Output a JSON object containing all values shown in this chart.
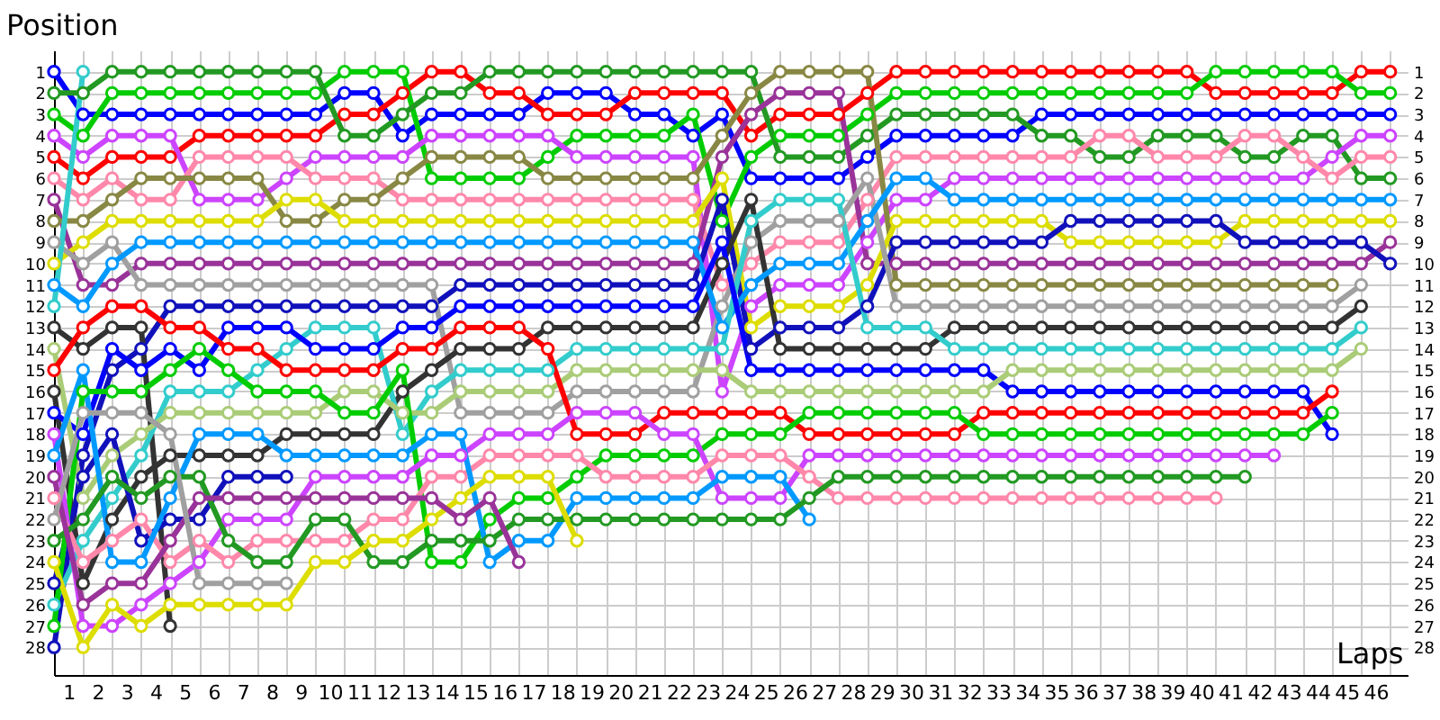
{
  "chart_data": {
    "type": "line",
    "xlabel": "Laps",
    "ylabel": "Position",
    "x": [
      0,
      1,
      2,
      3,
      4,
      5,
      6,
      7,
      8,
      9,
      10,
      11,
      12,
      13,
      14,
      15,
      16,
      17,
      18,
      19,
      20,
      21,
      22,
      23,
      24,
      25,
      26,
      27,
      28,
      29,
      30,
      31,
      32,
      33,
      34,
      35,
      36,
      37,
      38,
      39,
      40,
      41,
      42,
      43,
      44,
      45,
      46
    ],
    "xlim": [
      0,
      46.6
    ],
    "ylim": [
      29.3,
      0
    ],
    "y2lim": [
      29.3,
      0
    ],
    "xticks": [
      {
        "value": 0,
        "label": null
      },
      {
        "value": 0.5,
        "label": "1"
      },
      {
        "value": 1,
        "label": null
      },
      {
        "value": 1.5,
        "label": "2"
      },
      {
        "value": 2,
        "label": null
      },
      {
        "value": 2.5,
        "label": "3"
      },
      {
        "value": 3,
        "label": null
      },
      {
        "value": 3.5,
        "label": "4"
      },
      {
        "value": 4,
        "label": null
      },
      {
        "value": 4.5,
        "label": "5"
      },
      {
        "value": 5,
        "label": null
      },
      {
        "value": 5.5,
        "label": "6"
      },
      {
        "value": 6,
        "label": null
      },
      {
        "value": 6.5,
        "label": "7"
      },
      {
        "value": 7,
        "label": null
      },
      {
        "value": 7.5,
        "label": "8"
      },
      {
        "value": 8,
        "label": null
      },
      {
        "value": 8.5,
        "label": "9"
      },
      {
        "value": 9,
        "label": null
      },
      {
        "value": 9.5,
        "label": "10"
      },
      {
        "value": 10,
        "label": null
      },
      {
        "value": 10.5,
        "label": "11"
      },
      {
        "value": 11,
        "label": null
      },
      {
        "value": 11.5,
        "label": "12"
      },
      {
        "value": 12,
        "label": null
      },
      {
        "value": 12.5,
        "label": "13"
      },
      {
        "value": 13,
        "label": null
      },
      {
        "value": 13.5,
        "label": "14"
      },
      {
        "value": 14,
        "label": null
      },
      {
        "value": 14.5,
        "label": "15"
      },
      {
        "value": 15,
        "label": null
      },
      {
        "value": 15.5,
        "label": "16"
      },
      {
        "value": 16,
        "label": null
      },
      {
        "value": 16.5,
        "label": "17"
      },
      {
        "value": 17,
        "label": null
      },
      {
        "value": 17.5,
        "label": "18"
      },
      {
        "value": 18,
        "label": null
      },
      {
        "value": 18.5,
        "label": "19"
      },
      {
        "value": 19,
        "label": null
      },
      {
        "value": 19.5,
        "label": "20"
      },
      {
        "value": 20,
        "label": null
      },
      {
        "value": 20.5,
        "label": "21"
      },
      {
        "value": 21,
        "label": null
      },
      {
        "value": 21.5,
        "label": "22"
      },
      {
        "value": 22,
        "label": null
      },
      {
        "value": 22.5,
        "label": "23"
      },
      {
        "value": 23,
        "label": null
      },
      {
        "value": 23.5,
        "label": "24"
      },
      {
        "value": 24,
        "label": null
      },
      {
        "value": 24.5,
        "label": "25"
      },
      {
        "value": 25,
        "label": null
      },
      {
        "value": 25.5,
        "label": "26"
      },
      {
        "value": 26,
        "label": null
      },
      {
        "value": 26.5,
        "label": "27"
      },
      {
        "value": 27,
        "label": null
      },
      {
        "value": 27.5,
        "label": "28"
      },
      {
        "value": 28,
        "label": null
      },
      {
        "value": 28.5,
        "label": "29"
      },
      {
        "value": 29,
        "label": null
      },
      {
        "value": 29.5,
        "label": "30"
      },
      {
        "value": 30,
        "label": null
      },
      {
        "value": 30.5,
        "label": "31"
      },
      {
        "value": 31,
        "label": null
      },
      {
        "value": 31.5,
        "label": "32"
      },
      {
        "value": 32,
        "label": null
      },
      {
        "value": 32.5,
        "label": "33"
      },
      {
        "value": 33,
        "label": null
      },
      {
        "value": 33.5,
        "label": "34"
      },
      {
        "value": 34,
        "label": null
      },
      {
        "value": 34.5,
        "label": "35"
      },
      {
        "value": 35,
        "label": null
      },
      {
        "value": 35.5,
        "label": "36"
      },
      {
        "value": 36,
        "label": null
      },
      {
        "value": 36.5,
        "label": "37"
      },
      {
        "value": 37,
        "label": null
      },
      {
        "value": 37.5,
        "label": "38"
      },
      {
        "value": 38,
        "label": null
      },
      {
        "value": 38.5,
        "label": "39"
      },
      {
        "value": 39,
        "label": null
      },
      {
        "value": 39.5,
        "label": "40"
      },
      {
        "value": 40,
        "label": null
      },
      {
        "value": 40.5,
        "label": "41"
      },
      {
        "value": 41,
        "label": null
      },
      {
        "value": 41.5,
        "label": "42"
      },
      {
        "value": 42,
        "label": null
      },
      {
        "value": 42.5,
        "label": "43"
      },
      {
        "value": 43,
        "label": null
      },
      {
        "value": 43.5,
        "label": "44"
      },
      {
        "value": 44,
        "label": null
      },
      {
        "value": 44.5,
        "label": "45"
      },
      {
        "value": 45,
        "label": null
      },
      {
        "value": 45.5,
        "label": "46"
      },
      {
        "value": 46,
        "label": null
      }
    ],
    "yticks": [
      1,
      2,
      3,
      4,
      5,
      6,
      7,
      8,
      9,
      10,
      11,
      12,
      13,
      14,
      15,
      16,
      17,
      18,
      19,
      20,
      21,
      22,
      23,
      24,
      25,
      26,
      27,
      28
    ],
    "y2ticks": [
      1,
      2,
      3,
      4,
      5,
      6,
      7,
      8,
      9,
      10,
      11,
      12,
      13,
      14,
      15,
      16,
      17,
      18,
      19,
      20,
      21,
      22,
      23,
      24,
      25,
      26,
      27,
      28
    ],
    "grid": true,
    "marker": "circle",
    "line_style": "solid",
    "series": [
      {
        "color": "#0000ff",
        "values": [
          1,
          3,
          3,
          3,
          3,
          3,
          3,
          3,
          3,
          3,
          2,
          2,
          4,
          3,
          3,
          3,
          3,
          2,
          2,
          2,
          3,
          3,
          4,
          3,
          6,
          6,
          6,
          6,
          5,
          4,
          4,
          4,
          4,
          4,
          3,
          3,
          3,
          3,
          3,
          3,
          3,
          3,
          3,
          3,
          3,
          3,
          3
        ]
      },
      {
        "color": "#ff0000",
        "values": [
          5,
          6,
          5,
          5,
          5,
          4,
          4,
          4,
          4,
          4,
          3,
          3,
          2,
          1,
          1,
          2,
          2,
          3,
          3,
          3,
          2,
          2,
          2,
          2,
          4,
          3,
          3,
          3,
          2,
          1,
          1,
          1,
          1,
          1,
          1,
          1,
          1,
          1,
          1,
          1,
          2,
          2,
          2,
          2,
          2,
          1,
          1
        ]
      },
      {
        "color": "#00cc00",
        "values": [
          3,
          4,
          2,
          2,
          2,
          2,
          2,
          2,
          2,
          2,
          1,
          1,
          1,
          6,
          6,
          6,
          6,
          5,
          4,
          4,
          4,
          4,
          3,
          8,
          5,
          4,
          4,
          4,
          3,
          2,
          2,
          2,
          2,
          2,
          2,
          2,
          2,
          2,
          2,
          2,
          1,
          1,
          1,
          1,
          1,
          2,
          2
        ]
      },
      {
        "color": "#229922",
        "values": [
          2,
          2,
          1,
          1,
          1,
          1,
          1,
          1,
          1,
          1,
          4,
          4,
          3,
          2,
          2,
          1,
          1,
          1,
          1,
          1,
          1,
          1,
          1,
          1,
          1,
          5,
          5,
          5,
          4,
          3,
          3,
          3,
          3,
          3,
          4,
          4,
          5,
          5,
          4,
          4,
          4,
          5,
          5,
          4,
          4,
          6,
          6
        ]
      },
      {
        "color": "#cc44ff",
        "values": [
          4,
          5,
          4,
          4,
          4,
          7,
          7,
          7,
          6,
          5,
          5,
          5,
          5,
          4,
          4,
          4,
          4,
          4,
          5,
          5,
          5,
          5,
          5,
          16,
          12,
          11,
          11,
          11,
          9,
          7,
          7,
          6,
          6,
          6,
          6,
          6,
          6,
          6,
          6,
          6,
          6,
          6,
          6,
          6,
          5,
          4,
          4
        ]
      },
      {
        "color": "#ff88aa",
        "values": [
          6,
          7,
          6,
          7,
          7,
          5,
          5,
          5,
          5,
          6,
          6,
          6,
          7,
          7,
          7,
          7,
          7,
          7,
          7,
          7,
          7,
          7,
          7,
          11,
          10,
          9,
          9,
          9,
          7,
          5,
          5,
          5,
          5,
          5,
          5,
          5,
          4,
          4,
          5,
          5,
          5,
          4,
          4,
          5,
          6,
          5,
          5
        ]
      },
      {
        "color": "#993399",
        "values": [
          7,
          11,
          11,
          10,
          10,
          10,
          10,
          10,
          10,
          10,
          10,
          10,
          10,
          10,
          10,
          10,
          10,
          10,
          10,
          10,
          10,
          10,
          10,
          5,
          3,
          2,
          2,
          2,
          10,
          10,
          10,
          10,
          10,
          10,
          10,
          10,
          10,
          10,
          10,
          10,
          10,
          10,
          10,
          10,
          10,
          10,
          9
        ]
      },
      {
        "color": "#888844",
        "values": [
          8,
          8,
          7,
          6,
          6,
          6,
          6,
          6,
          8,
          8,
          7,
          7,
          6,
          5,
          5,
          5,
          5,
          6,
          6,
          6,
          6,
          6,
          6,
          4,
          2,
          1,
          1,
          1,
          1,
          11,
          11,
          11,
          11,
          11,
          11,
          11,
          11,
          11,
          11,
          11,
          11,
          11,
          11,
          11,
          11,
          null,
          null
        ]
      },
      {
        "color": "#dddd00",
        "values": [
          10,
          9,
          8,
          8,
          8,
          8,
          8,
          8,
          7,
          7,
          8,
          8,
          8,
          8,
          8,
          8,
          8,
          8,
          8,
          8,
          8,
          8,
          8,
          6,
          13,
          12,
          12,
          12,
          11,
          8,
          8,
          8,
          8,
          8,
          8,
          9,
          9,
          9,
          9,
          9,
          9,
          8,
          8,
          8,
          8,
          8,
          8
        ]
      },
      {
        "color": "#1111bb",
        "values": [
          28,
          19,
          15,
          14,
          12,
          12,
          12,
          12,
          12,
          12,
          12,
          12,
          12,
          12,
          11,
          11,
          11,
          11,
          11,
          11,
          11,
          11,
          11,
          7,
          14,
          13,
          13,
          13,
          12,
          9,
          9,
          9,
          9,
          9,
          9,
          8,
          8,
          8,
          8,
          8,
          8,
          9,
          9,
          9,
          9,
          9,
          10
        ]
      },
      {
        "color": "#a0a0a0",
        "values": [
          9,
          10,
          9,
          11,
          11,
          11,
          11,
          11,
          11,
          11,
          11,
          11,
          11,
          11,
          17,
          17,
          17,
          17,
          16,
          16,
          16,
          16,
          16,
          12,
          9,
          8,
          8,
          8,
          6,
          12,
          12,
          12,
          12,
          12,
          12,
          12,
          12,
          12,
          12,
          12,
          12,
          12,
          12,
          12,
          12,
          11,
          null
        ]
      },
      {
        "color": "#333333",
        "values": [
          13,
          14,
          13,
          13,
          27,
          null,
          null,
          null,
          null,
          null,
          null,
          null,
          null,
          null,
          null,
          null,
          null,
          null,
          null,
          null,
          null,
          null,
          null,
          null,
          null,
          null,
          null,
          null,
          null,
          null,
          null,
          null,
          null,
          null,
          null,
          null,
          null,
          null,
          null,
          null,
          null,
          null,
          null,
          null,
          null,
          null,
          null
        ]
      },
      {
        "color": "#333333",
        "values": [
          16,
          25,
          22,
          20,
          19,
          19,
          19,
          19,
          18,
          18,
          18,
          18,
          16,
          15,
          14,
          14,
          14,
          13,
          13,
          13,
          13,
          13,
          13,
          10,
          7,
          14,
          14,
          14,
          14,
          14,
          14,
          13,
          13,
          13,
          13,
          13,
          13,
          13,
          13,
          13,
          13,
          13,
          13,
          13,
          13,
          12,
          null
        ]
      },
      {
        "color": "#0099ff",
        "values": [
          11,
          12,
          10,
          9,
          9,
          9,
          9,
          9,
          9,
          9,
          9,
          9,
          9,
          9,
          9,
          9,
          9,
          9,
          9,
          9,
          9,
          9,
          9,
          13,
          11,
          10,
          10,
          10,
          8,
          6,
          6,
          7,
          7,
          7,
          7,
          7,
          7,
          7,
          7,
          7,
          7,
          7,
          7,
          7,
          7,
          7,
          7
        ]
      },
      {
        "color": "#33cccc",
        "values": [
          26,
          23,
          21,
          19,
          16,
          16,
          16,
          15,
          14,
          13,
          13,
          13,
          18,
          16,
          15,
          15,
          15,
          15,
          14,
          14,
          14,
          14,
          14,
          14,
          8,
          7,
          7,
          7,
          13,
          13,
          13,
          14,
          14,
          14,
          14,
          14,
          14,
          14,
          14,
          14,
          14,
          14,
          14,
          14,
          14,
          13,
          null
        ]
      },
      {
        "color": "#0000ff",
        "values": [
          17,
          18,
          14,
          15,
          14,
          15,
          13,
          13,
          13,
          14,
          14,
          14,
          13,
          13,
          12,
          12,
          12,
          12,
          12,
          12,
          12,
          12,
          12,
          9,
          15,
          15,
          15,
          15,
          15,
          15,
          15,
          15,
          15,
          16,
          16,
          16,
          16,
          16,
          16,
          16,
          16,
          16,
          16,
          16,
          18,
          null,
          null
        ]
      },
      {
        "color": "#33cccc",
        "values": [
          12,
          1,
          null,
          null,
          null,
          null,
          null,
          null,
          null,
          null,
          null,
          null,
          null,
          null,
          null,
          null,
          null,
          null,
          null,
          null,
          null,
          null,
          null,
          null,
          null,
          null,
          null,
          null,
          null,
          null,
          null,
          null,
          null,
          null,
          null,
          null,
          null,
          null,
          null,
          null,
          null,
          null,
          null,
          null,
          null,
          null,
          null
        ]
      },
      {
        "color": "#aacc77",
        "values": [
          14,
          21,
          19,
          18,
          17,
          17,
          17,
          17,
          17,
          17,
          16,
          16,
          17,
          17,
          16,
          16,
          16,
          16,
          15,
          15,
          15,
          15,
          15,
          15,
          16,
          16,
          16,
          16,
          16,
          16,
          16,
          16,
          16,
          15,
          15,
          15,
          15,
          15,
          15,
          15,
          15,
          15,
          15,
          15,
          15,
          14,
          null
        ]
      },
      {
        "color": "#1111bb",
        "values": [
          25,
          20,
          18,
          23,
          22,
          22,
          20,
          20,
          20,
          null,
          null,
          null,
          null,
          null,
          null,
          null,
          null,
          null,
          null,
          null,
          null,
          null,
          null,
          null,
          null,
          null,
          null,
          null,
          null,
          null,
          null,
          null,
          null,
          null,
          null,
          null,
          null,
          null,
          null,
          null,
          null,
          null,
          null,
          null,
          null,
          null,
          null
        ]
      },
      {
        "color": "#ff0000",
        "values": [
          15,
          13,
          12,
          12,
          13,
          13,
          14,
          14,
          15,
          15,
          15,
          15,
          14,
          14,
          13,
          13,
          13,
          14,
          18,
          18,
          18,
          17,
          17,
          17,
          17,
          17,
          18,
          18,
          18,
          18,
          18,
          18,
          17,
          17,
          17,
          17,
          17,
          17,
          17,
          17,
          17,
          17,
          17,
          17,
          16,
          null,
          null
        ]
      },
      {
        "color": "#00cc00",
        "values": [
          27,
          16,
          16,
          16,
          15,
          14,
          15,
          16,
          16,
          16,
          17,
          17,
          15,
          24,
          24,
          22,
          21,
          21,
          20,
          19,
          19,
          19,
          19,
          18,
          18,
          18,
          17,
          17,
          17,
          17,
          17,
          17,
          18,
          18,
          18,
          18,
          18,
          18,
          18,
          18,
          18,
          18,
          18,
          18,
          17,
          null,
          null
        ]
      },
      {
        "color": "#cc44ff",
        "values": [
          18,
          27,
          27,
          26,
          25,
          24,
          22,
          22,
          22,
          20,
          20,
          20,
          20,
          19,
          19,
          18,
          18,
          18,
          17,
          17,
          17,
          18,
          18,
          21,
          21,
          21,
          19,
          19,
          19,
          19,
          19,
          19,
          19,
          19,
          19,
          19,
          19,
          19,
          19,
          19,
          19,
          19,
          19,
          null,
          null,
          null,
          null
        ]
      },
      {
        "color": "#ff88aa",
        "values": [
          21,
          24,
          23,
          22,
          24,
          23,
          24,
          23,
          23,
          23,
          23,
          22,
          22,
          20,
          20,
          19,
          19,
          19,
          19,
          20,
          20,
          20,
          20,
          19,
          19,
          19,
          20,
          21,
          21,
          21,
          21,
          21,
          21,
          21,
          21,
          21,
          21,
          21,
          21,
          21,
          21,
          null,
          null,
          null,
          null,
          null,
          null
        ]
      },
      {
        "color": "#0099ff",
        "values": [
          19,
          15,
          24,
          24,
          21,
          18,
          18,
          18,
          19,
          19,
          19,
          19,
          19,
          18,
          18,
          24,
          23,
          23,
          21,
          21,
          21,
          21,
          21,
          20,
          20,
          20,
          22,
          null,
          null,
          null,
          null,
          null,
          null,
          null,
          null,
          null,
          null,
          null,
          null,
          null,
          null,
          null,
          null,
          null,
          null,
          null,
          null
        ]
      },
      {
        "color": "#229922",
        "values": [
          23,
          22,
          20,
          21,
          20,
          20,
          23,
          24,
          24,
          22,
          22,
          24,
          24,
          23,
          23,
          23,
          22,
          22,
          22,
          22,
          22,
          22,
          22,
          22,
          22,
          22,
          21,
          20,
          20,
          20,
          20,
          20,
          20,
          20,
          20,
          20,
          20,
          20,
          20,
          20,
          20,
          20,
          null,
          null,
          null,
          null,
          null
        ]
      },
      {
        "color": "#dddd00",
        "values": [
          24,
          28,
          26,
          27,
          26,
          26,
          26,
          26,
          26,
          24,
          24,
          23,
          23,
          22,
          21,
          20,
          20,
          20,
          23,
          null,
          null,
          null,
          null,
          null,
          null,
          null,
          null,
          null,
          null,
          null,
          null,
          null,
          null,
          null,
          null,
          null,
          null,
          null,
          null,
          null,
          null,
          null,
          null,
          null,
          null,
          null,
          null
        ]
      },
      {
        "color": "#993399",
        "values": [
          20,
          26,
          25,
          25,
          23,
          21,
          21,
          21,
          21,
          21,
          21,
          21,
          21,
          21,
          22,
          21,
          24,
          null,
          null,
          null,
          null,
          null,
          null,
          null,
          null,
          null,
          null,
          null,
          null,
          null,
          null,
          null,
          null,
          null,
          null,
          null,
          null,
          null,
          null,
          null,
          null,
          null,
          null,
          null,
          null,
          null,
          null
        ]
      },
      {
        "color": "#a0a0a0",
        "values": [
          22,
          17,
          17,
          17,
          18,
          25,
          25,
          25,
          25,
          null,
          null,
          null,
          null,
          null,
          null,
          null,
          null,
          null,
          null,
          null,
          null,
          null,
          null,
          null,
          null,
          null,
          null,
          null,
          null,
          null,
          null,
          null,
          null,
          null,
          null,
          null,
          null,
          null,
          null,
          null,
          null,
          null,
          null,
          null,
          null,
          null,
          null
        ]
      }
    ]
  }
}
